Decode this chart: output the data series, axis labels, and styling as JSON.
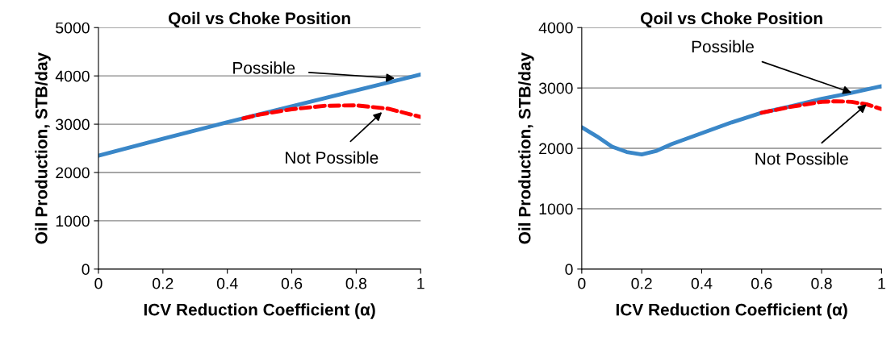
{
  "chart_data": [
    {
      "type": "line",
      "title": "Qoil vs Choke Position",
      "xlabel": "ICV Reduction Coefficient (α)",
      "ylabel": "Oil Production, STB/day",
      "xlim": [
        0,
        1
      ],
      "xticks": [
        0,
        0.2,
        0.4,
        0.6,
        0.8,
        1
      ],
      "ylim": [
        0,
        5000
      ],
      "yticks": [
        0,
        1000,
        2000,
        3000,
        4000,
        5000
      ],
      "grid": "y",
      "legend": false,
      "series": [
        {
          "x": [
            0.45,
            0.5,
            0.6,
            0.7,
            0.8,
            0.9,
            1
          ],
          "values": [
            3120,
            3200,
            3310,
            3380,
            3390,
            3320,
            3150
          ],
          "color": "#ff0000",
          "line_style": "dashed"
        },
        {
          "x": [
            0,
            0.2,
            0.4,
            0.6,
            0.8,
            1
          ],
          "values": [
            2350,
            2700,
            3040,
            3370,
            3700,
            4030
          ],
          "color": "#3a87c8",
          "line_style": "solid"
        }
      ],
      "annotations": [
        {
          "text": "Possible",
          "x": 0.92,
          "y": 3950
        },
        {
          "text": "Not Possible",
          "x": 0.88,
          "y": 3250
        }
      ]
    },
    {
      "type": "line",
      "title": "Qoil vs Choke Position",
      "xlabel": "ICV Reduction Coefficient (α)",
      "ylabel": "Oil Production, STB/day",
      "xlim": [
        0,
        1
      ],
      "xticks": [
        0,
        0.2,
        0.4,
        0.6,
        0.8,
        1
      ],
      "ylim": [
        0,
        4000
      ],
      "yticks": [
        0,
        1000,
        2000,
        3000,
        4000
      ],
      "grid": "y",
      "legend": false,
      "series": [
        {
          "x": [
            0.6,
            0.7,
            0.8,
            0.85,
            0.9,
            0.95,
            1
          ],
          "values": [
            2590,
            2690,
            2770,
            2780,
            2770,
            2730,
            2650
          ],
          "color": "#ff0000",
          "line_style": "dashed"
        },
        {
          "x": [
            0,
            0.05,
            0.1,
            0.15,
            0.2,
            0.25,
            0.3,
            0.4,
            0.5,
            0.6,
            0.7,
            0.8,
            0.9,
            1
          ],
          "values": [
            2350,
            2200,
            2030,
            1940,
            1900,
            1960,
            2070,
            2250,
            2430,
            2590,
            2700,
            2820,
            2920,
            3030
          ],
          "color": "#3a87c8",
          "line_style": "solid"
        }
      ],
      "annotations": [
        {
          "text": "Possible",
          "x": 0.9,
          "y": 2920
        },
        {
          "text": "Not Possible",
          "x": 0.95,
          "y": 2730
        }
      ]
    }
  ]
}
